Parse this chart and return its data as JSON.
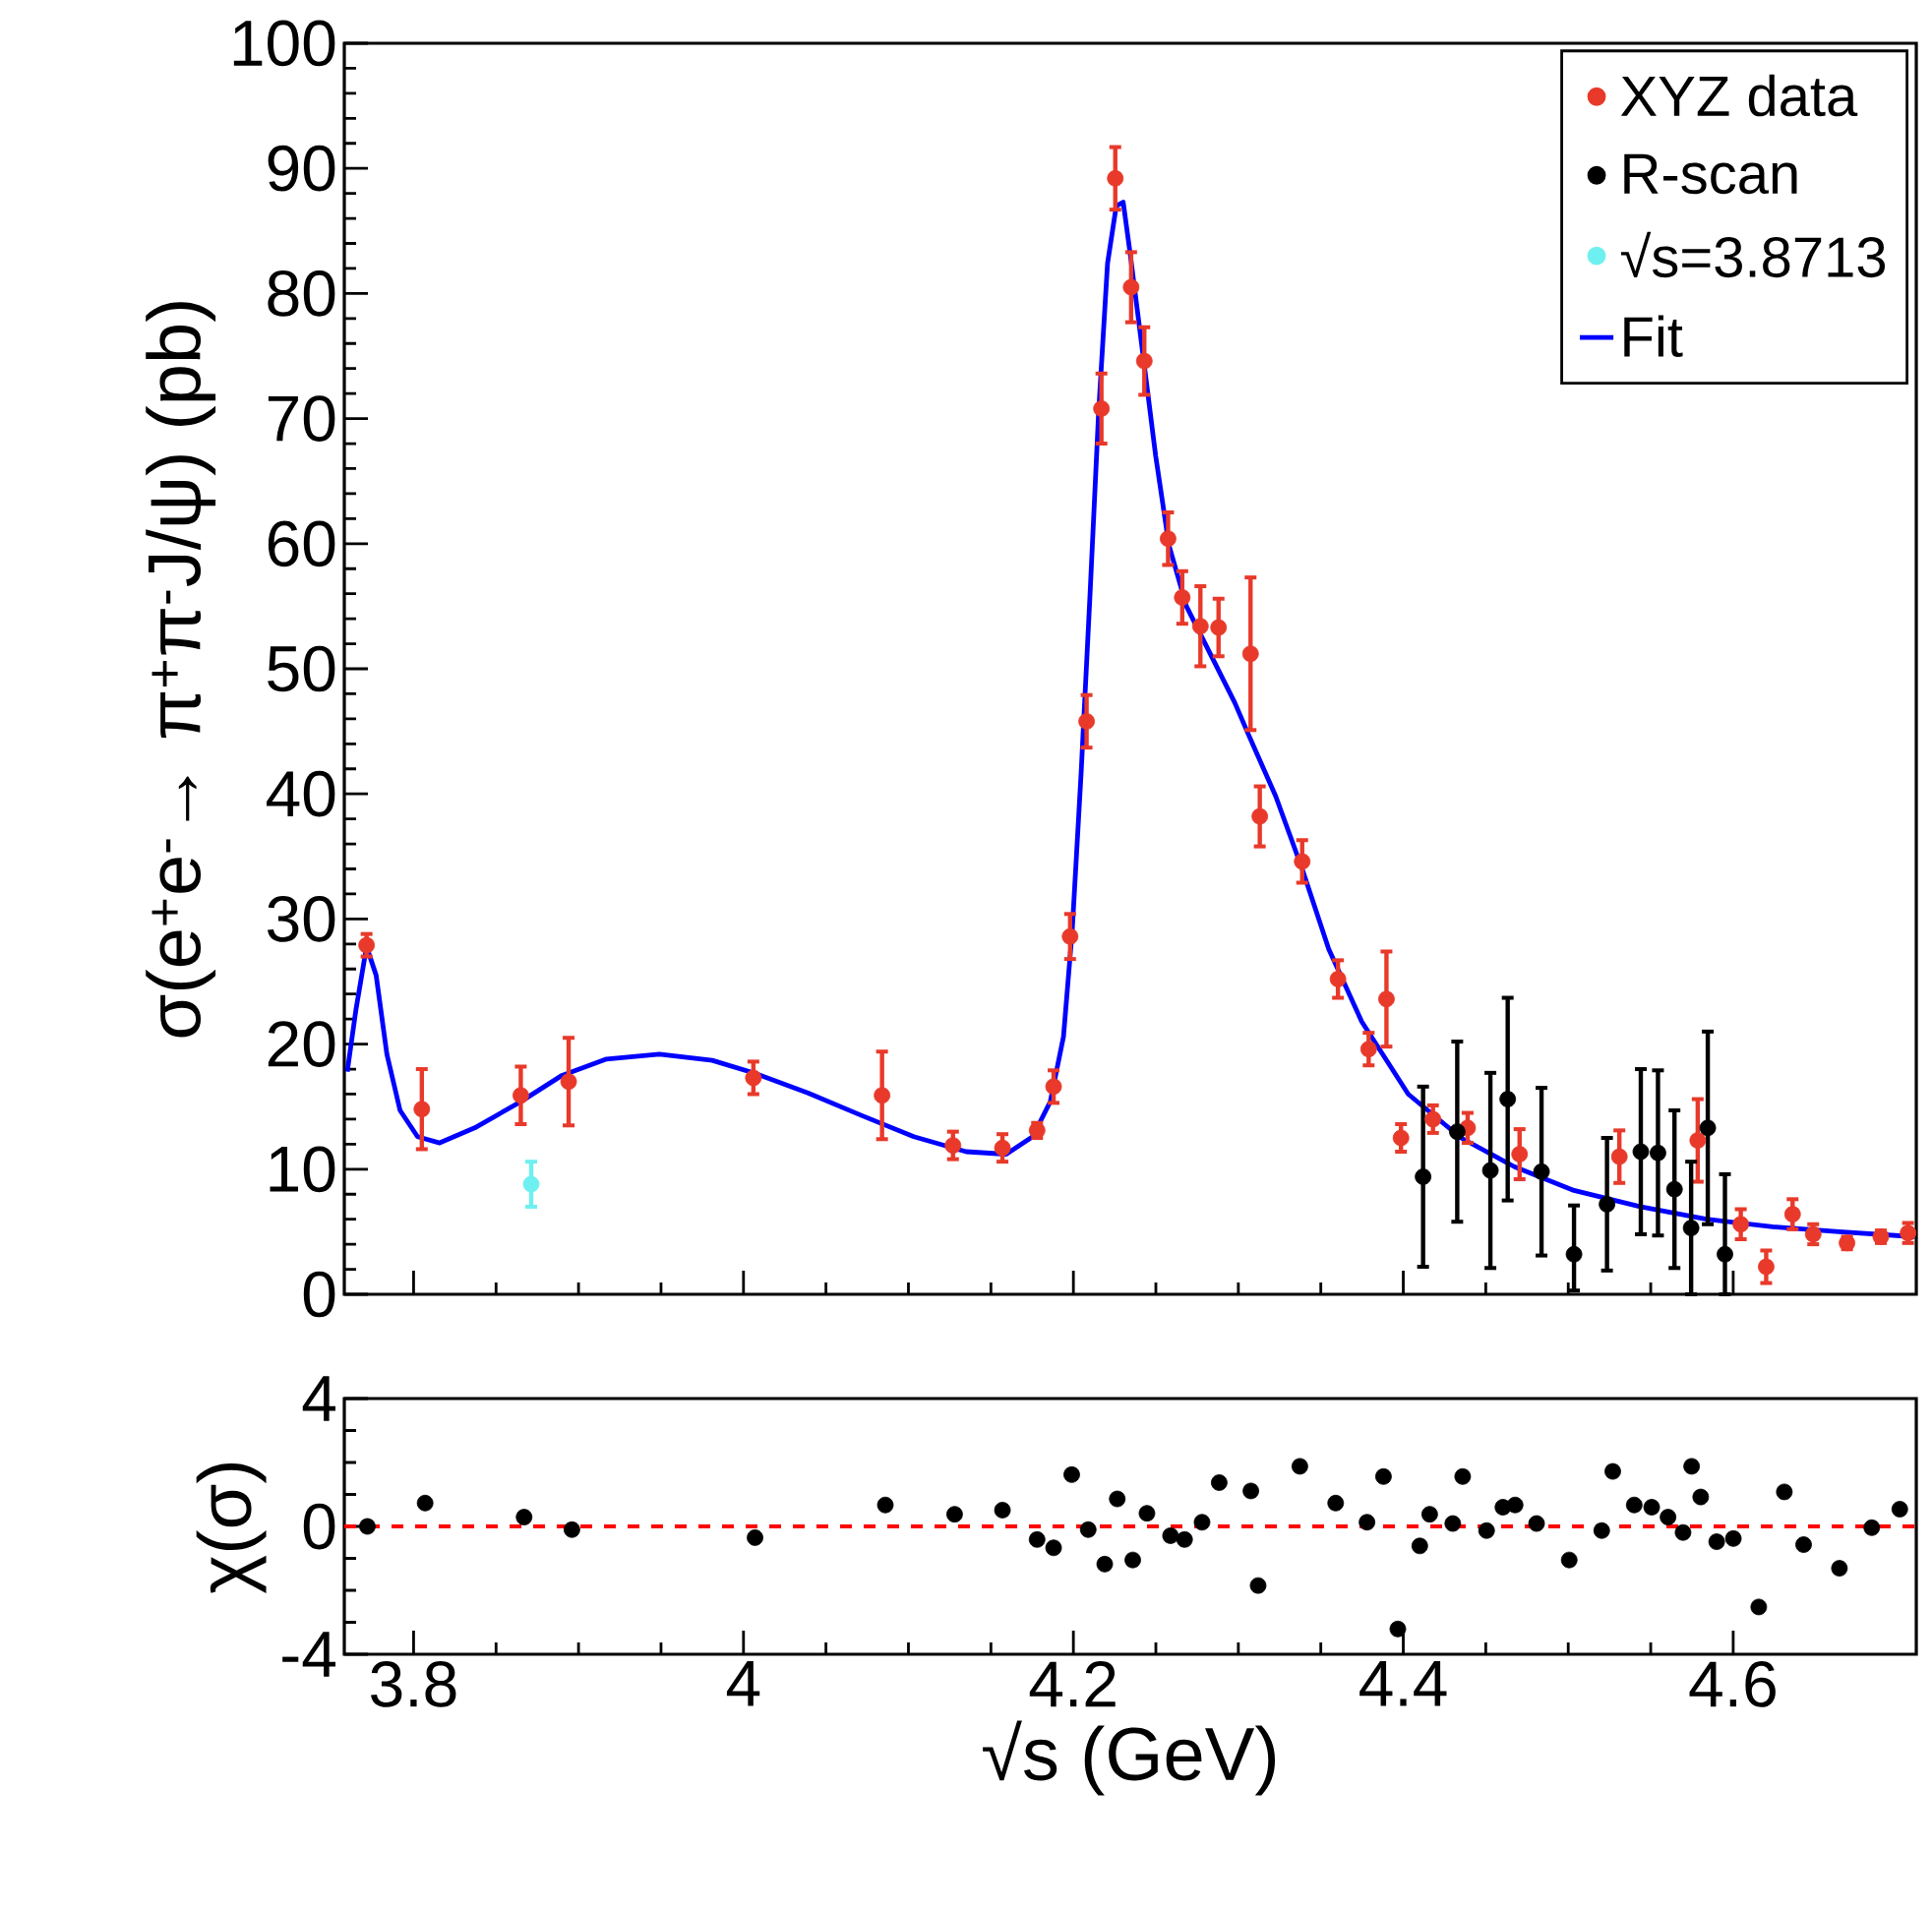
{
  "chart_data": [
    {
      "type": "scatter",
      "ylabel": "σ(e$^{+}$e$^{-}$→ π$^{+}$π$^{-}$J/ψ) (pb)",
      "xlim": [
        3.758,
        4.711
      ],
      "ylim": [
        0,
        100
      ],
      "xticks": [
        3.8,
        4,
        4.2,
        4.4,
        4.6
      ],
      "yticks": [
        0,
        10,
        20,
        30,
        40,
        50,
        60,
        70,
        80,
        90,
        100
      ],
      "tick_labels": "y",
      "legend": "top right",
      "marker": "circle",
      "series": [
        {
          "name": "XYZ data",
          "color": "#e8392a",
          "x": [
            3.7715,
            3.805,
            3.865,
            3.894,
            4.006,
            4.084,
            4.127,
            4.157,
            4.178,
            4.188,
            4.198,
            4.208,
            4.217,
            4.2254,
            4.235,
            4.243,
            4.2574,
            4.266,
            4.277,
            4.288,
            4.3074,
            4.313,
            4.3387,
            4.3604,
            4.379,
            4.3898,
            4.3986,
            4.418,
            4.439,
            4.4705,
            4.531,
            4.5785,
            4.6046,
            4.62,
            4.636,
            4.6485,
            4.669,
            4.6895,
            4.706
          ],
          "values": [
            27.9,
            14.8,
            15.9,
            17.0,
            17.3,
            15.9,
            11.9,
            11.7,
            13.1,
            16.6,
            28.6,
            45.8,
            70.8,
            89.2,
            80.5,
            74.6,
            60.4,
            55.7,
            53.4,
            53.3,
            51.2,
            38.2,
            34.6,
            25.2,
            19.6,
            23.6,
            12.5,
            14.0,
            13.3,
            11.2,
            11.0,
            12.3,
            5.6,
            2.2,
            6.4,
            4.8,
            4.1,
            4.6,
            4.9
          ],
          "errors": [
            0.9,
            3.2,
            2.3,
            3.5,
            1.3,
            3.5,
            1.1,
            1.1,
            0.6,
            1.3,
            1.8,
            2.1,
            2.8,
            2.5,
            2.8,
            2.7,
            2.1,
            2.1,
            3.2,
            2.3,
            6.1,
            2.4,
            1.7,
            1.5,
            1.3,
            3.8,
            1.1,
            1.1,
            1.2,
            2.0,
            2.1,
            3.3,
            1.2,
            1.3,
            1.2,
            0.8,
            0.5,
            0.5,
            0.8
          ]
        },
        {
          "name": "R-scan",
          "color": "#000000",
          "x": [
            4.412,
            4.4327,
            4.4528,
            4.4633,
            4.4838,
            4.5035,
            4.5235,
            4.544,
            4.5544,
            4.5644,
            4.5745,
            4.5846,
            4.595
          ],
          "values": [
            9.4,
            13.0,
            9.9,
            15.6,
            9.8,
            3.2,
            7.2,
            11.4,
            11.3,
            8.4,
            5.3,
            13.3,
            3.2
          ],
          "errors": [
            7.2,
            7.2,
            7.8,
            8.1,
            6.7,
            [
              0.3,
              7.1
            ],
            5.3,
            6.6,
            6.6,
            6.3,
            5.3,
            7.7,
            [
              0,
              9.6
            ]
          ]
        },
        {
          "name": "√s=3.8713",
          "color": "#6ff0f0",
          "x": [
            3.8713
          ],
          "values": [
            8.8
          ],
          "errors": [
            1.8
          ]
        },
        {
          "name": "Fit",
          "type": "line",
          "marker": "none",
          "color": "#0000ff",
          "x": [
            3.7598,
            3.765,
            3.7715,
            3.7773,
            3.7838,
            3.7918,
            3.8024,
            3.8158,
            3.837,
            3.865,
            3.89,
            3.917,
            3.949,
            3.981,
            4.006,
            4.039,
            4.0715,
            4.1033,
            4.135,
            4.1593,
            4.1753,
            4.186,
            4.194,
            4.1993,
            4.2047,
            4.21,
            4.2153,
            4.2207,
            4.226,
            4.2302,
            4.2345,
            4.2419,
            4.2499,
            4.2579,
            4.2685,
            4.2845,
            4.2978,
            4.3066,
            4.3227,
            4.3387,
            4.3548,
            4.3748,
            4.403,
            4.435,
            4.4673,
            4.5035,
            4.5436,
            4.5838,
            4.624,
            4.6641,
            4.71
          ],
          "values": [
            17.8,
            22.7,
            27.8,
            25.5,
            19.2,
            14.7,
            12.6,
            12.1,
            13.3,
            15.4,
            17.5,
            18.8,
            19.2,
            18.7,
            17.7,
            16.1,
            14.3,
            12.6,
            11.4,
            11.2,
            12.6,
            15.4,
            20.6,
            29.1,
            41.7,
            55.7,
            70.5,
            82.4,
            87.0,
            87.3,
            83.1,
            75.4,
            67.0,
            59.9,
            55.0,
            50.8,
            47.3,
            44.6,
            39.8,
            34.0,
            27.6,
            21.8,
            16.0,
            12.5,
            10.2,
            8.3,
            7.0,
            6.0,
            5.4,
            5.0,
            4.6
          ]
        }
      ]
    },
    {
      "type": "scatter",
      "xlabel": "√s (GeV)",
      "ylabel": "χ(σ)",
      "xlim": [
        3.758,
        4.711
      ],
      "ylim": [
        -4,
        4
      ],
      "xticks": [
        3.8,
        4,
        4.2,
        4.4,
        4.6
      ],
      "yticks": [
        -4,
        0,
        4
      ],
      "marker": "circle",
      "color": "#000000",
      "x": [
        3.772,
        3.807,
        3.867,
        3.896,
        4.007,
        4.086,
        4.128,
        4.157,
        4.178,
        4.188,
        4.199,
        4.209,
        4.219,
        4.2266,
        4.236,
        4.2446,
        4.2589,
        4.2674,
        4.278,
        4.2884,
        4.3076,
        4.312,
        4.3373,
        4.359,
        4.378,
        4.388,
        4.3967,
        4.41,
        4.416,
        4.43,
        4.436,
        4.4505,
        4.4604,
        4.4678,
        4.4808,
        4.5006,
        4.5203,
        4.527,
        4.54,
        4.5506,
        4.5605,
        4.5696,
        4.5748,
        4.5803,
        4.59,
        4.6001,
        4.6155,
        4.631,
        4.6427,
        4.6644,
        4.684,
        4.701
      ],
      "values": [
        0.0,
        0.73,
        0.29,
        -0.1,
        -0.35,
        0.67,
        0.38,
        0.51,
        -0.41,
        -0.67,
        1.62,
        -0.1,
        -1.18,
        0.86,
        -1.05,
        0.41,
        -0.29,
        -0.41,
        0.13,
        1.37,
        1.11,
        -1.85,
        1.88,
        0.73,
        0.13,
        1.56,
        -3.21,
        -0.61,
        0.38,
        0.09,
        1.56,
        -0.13,
        0.6,
        0.67,
        0.09,
        -1.05,
        -0.13,
        1.72,
        0.67,
        0.6,
        0.29,
        -0.19,
        1.88,
        0.92,
        -0.48,
        -0.38,
        -2.52,
        1.08,
        -0.57,
        -1.31,
        -0.04,
        0.54
      ],
      "ref_lines": [
        {
          "axis": "y",
          "value": 0,
          "color": "#ff0000",
          "line_style": "dashed"
        }
      ]
    }
  ]
}
